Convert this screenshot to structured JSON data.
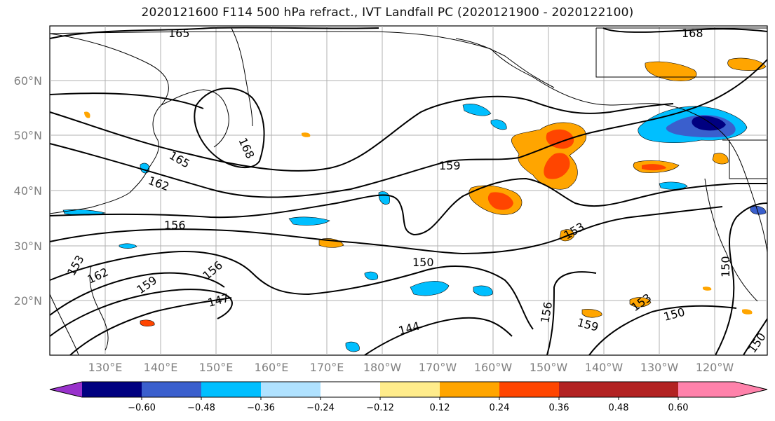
{
  "title": "2020121600 F114 500 hPa refract., IVT Landfall PC (2020121900 - 2020122100)",
  "latitude_labels": [
    "60°N",
    "50°N",
    "40°N",
    "30°N",
    "20°N"
  ],
  "longitude_labels": [
    "130°E",
    "140°E",
    "150°E",
    "160°E",
    "170°E",
    "180°W",
    "170°W",
    "160°W",
    "150°W",
    "140°W",
    "130°W",
    "120°W"
  ],
  "contour_labels": [
    "165",
    "168",
    "168",
    "165",
    "162",
    "159",
    "156",
    "153",
    "153",
    "150",
    "150",
    "150",
    "147",
    "144",
    "162",
    "159",
    "156",
    "156",
    "159",
    "153",
    "150"
  ],
  "colorbar": {
    "ticks": [
      "−0.60",
      "−0.48",
      "−0.36",
      "−0.24",
      "−0.12",
      "0.12",
      "0.24",
      "0.36",
      "0.48",
      "0.60"
    ],
    "colors": [
      "#9932CC",
      "#000080",
      "#3A5FCD",
      "#00BFFF",
      "#B0E2FF",
      "#FFFFFF",
      "#FFEC8B",
      "#FFA500",
      "#FF4500",
      "#B22222",
      "#FF82AB"
    ]
  }
}
